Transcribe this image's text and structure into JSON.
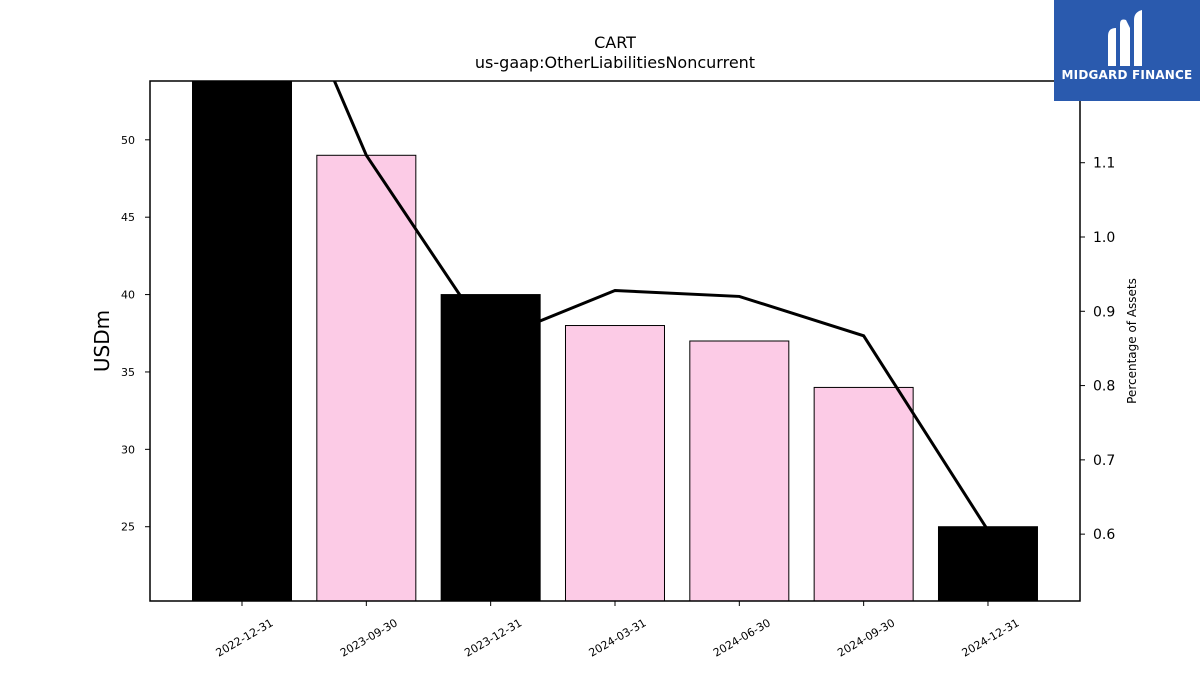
{
  "chart_data": {
    "type": "bar",
    "title": "CART",
    "subtitle": "us-gaap:OtherLiabilitiesNoncurrent",
    "ylabel": "USDm",
    "y2label": "Percentage of Assets",
    "categories": [
      "2022-12-31",
      "2023-09-30",
      "2023-12-31",
      "2024-03-31",
      "2024-06-30",
      "2024-09-30",
      "2024-12-31"
    ],
    "values": [
      54,
      49,
      40,
      38,
      37,
      34,
      25
    ],
    "bar_colors": [
      "#000000",
      "#fccbe6",
      "#000000",
      "#fccbe6",
      "#fccbe6",
      "#fccbe6",
      "#000000"
    ],
    "ylim": [
      20.2,
      53.8
    ],
    "yticks": [
      25,
      30,
      35,
      40,
      45,
      50
    ],
    "series": [
      {
        "name": "",
        "axis": "right",
        "type": "line",
        "values": [
          1.5,
          1.11,
          0.86,
          0.928,
          0.92,
          0.867,
          0.605
        ]
      }
    ],
    "y2lim": [
      0.51,
      1.21
    ],
    "y2ticks": [
      0.6,
      0.7,
      0.8,
      0.9,
      1.0,
      1.1
    ],
    "y2ticklabels": [
      "0.6",
      "0.7",
      "0.8",
      "0.9",
      "1.0",
      "1.1"
    ],
    "grid": false,
    "legend": "none"
  },
  "logo": {
    "text": "MIDGARD FINANCE",
    "color": "#2a5aae"
  }
}
